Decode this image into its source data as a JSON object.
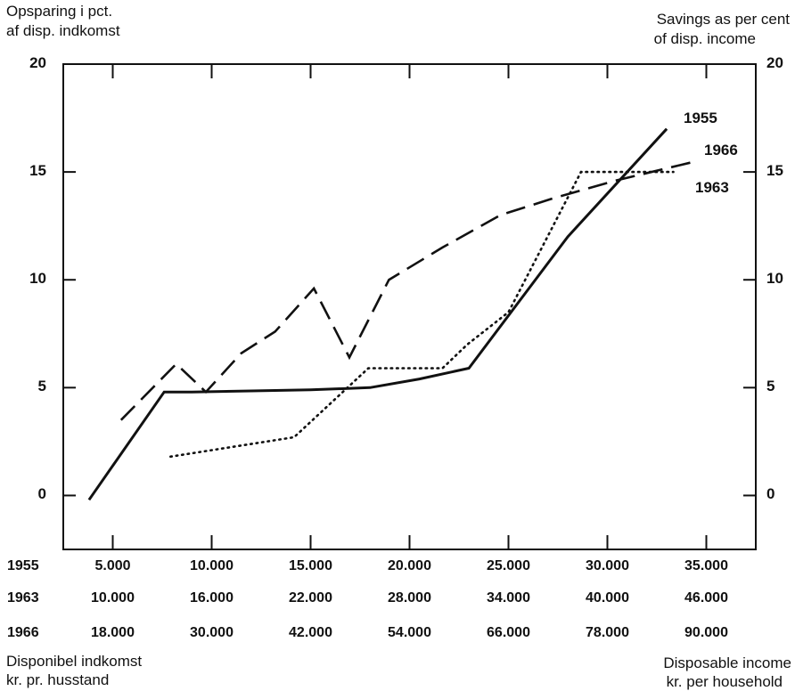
{
  "labels": {
    "left_axis_title_1": "Opsparing i pct.",
    "left_axis_title_2": "af disp. indkomst",
    "right_axis_title_1": "Savings as per cent",
    "right_axis_title_2": "of disp. income",
    "bottom_left_title_1": "Disponibel indkomst",
    "bottom_left_title_2": "kr. pr. husstand",
    "bottom_right_title_1": "Disposable income",
    "bottom_right_title_2": "kr. per household"
  },
  "chart_data": {
    "type": "line",
    "ylabel_left": "Opsparing i pct. af disp. indkomst",
    "ylabel_right": "Savings as per cent of disp. income",
    "xlabel_left": "Disponibel indkomst kr. pr. husstand",
    "xlabel_right": "Disposable income kr. per household",
    "ylim": [
      -2.5,
      20
    ],
    "yticks": [
      "0",
      "5",
      "10",
      "15",
      "20"
    ],
    "x_axes": [
      {
        "name": "1955",
        "ticks": [
          "5.000",
          "10.000",
          "15.000",
          "20.000",
          "25.000",
          "30.000",
          "35.000"
        ],
        "lim": [
          2500,
          37500
        ]
      },
      {
        "name": "1963",
        "ticks": [
          "10.000",
          "16.000",
          "22.000",
          "28.000",
          "34.000",
          "40.000",
          "46.000"
        ],
        "lim": [
          7000,
          49000
        ]
      },
      {
        "name": "1966",
        "ticks": [
          "18.000",
          "30.000",
          "42.000",
          "54.000",
          "66.000",
          "78.000",
          "90.000"
        ],
        "lim": [
          12000,
          96000
        ]
      }
    ],
    "series": [
      {
        "name": "1955",
        "style": "solid",
        "x": [
          3800,
          7600,
          9000,
          12000,
          15000,
          18000,
          20500,
          23000,
          28000,
          33000
        ],
        "y": [
          -0.2,
          4.8,
          4.8,
          4.85,
          4.9,
          5.0,
          5.4,
          5.9,
          12.0,
          17.0
        ]
      },
      {
        "name": "1963",
        "style": "dotted",
        "x": [
          13500,
          21000,
          25500,
          30000,
          31500,
          34000,
          38400,
          44000
        ],
        "y": [
          1.8,
          2.7,
          5.9,
          5.9,
          7.0,
          8.5,
          15.0,
          15.0
        ]
      },
      {
        "name": "1966",
        "style": "dashed",
        "x": [
          19000,
          25700,
          29300,
          33600,
          37700,
          42400,
          46700,
          51500,
          58000,
          65000,
          71600,
          79000,
          88800
        ],
        "y": [
          3.5,
          6.1,
          4.8,
          6.6,
          7.6,
          9.6,
          6.4,
          10.0,
          11.5,
          13.0,
          13.8,
          14.6,
          15.5
        ]
      }
    ]
  }
}
